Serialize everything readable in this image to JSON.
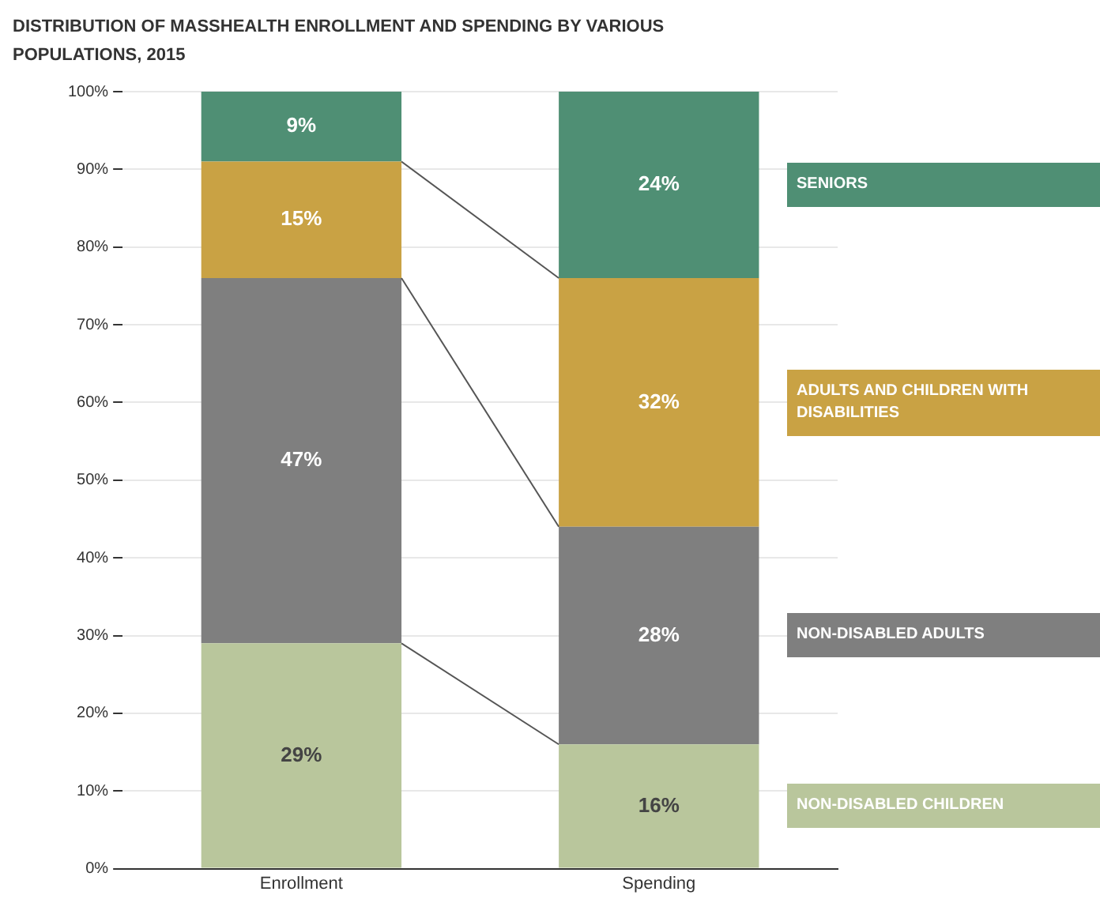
{
  "chart_data": {
    "type": "bar",
    "title": "DISTRIBUTION OF MASSHEALTH ENROLLMENT AND SPENDING BY VARIOUS POPULATIONS, 2015",
    "categories": [
      "Enrollment",
      "Spending"
    ],
    "stacked": true,
    "legend": "right",
    "grid": "y",
    "ylim": [
      0,
      100
    ],
    "yticks": [
      {
        "value": 0,
        "label": "0%"
      },
      {
        "value": 10,
        "label": "10%"
      },
      {
        "value": 20,
        "label": "20%"
      },
      {
        "value": 30,
        "label": "30%"
      },
      {
        "value": 40,
        "label": "40%"
      },
      {
        "value": 50,
        "label": "50%"
      },
      {
        "value": 60,
        "label": "60%"
      },
      {
        "value": 70,
        "label": "70%"
      },
      {
        "value": 80,
        "label": "80%"
      },
      {
        "value": 90,
        "label": "90%"
      },
      {
        "value": 100,
        "label": "100%"
      }
    ],
    "series": [
      {
        "name": "NON-DISABLED CHILDREN",
        "color": "#b9c69c",
        "values": [
          29,
          16
        ],
        "value_labels": [
          "29%",
          "16%"
        ]
      },
      {
        "name": "NON-DISABLED ADULTS",
        "color": "#7f7f7f",
        "values": [
          47,
          28
        ],
        "value_labels": [
          "47%",
          "28%"
        ]
      },
      {
        "name": "ADULTS AND CHILDREN WITH DISABILITIES",
        "color": "#c9a244",
        "values": [
          15,
          32
        ],
        "value_labels": [
          "15%",
          "32%"
        ]
      },
      {
        "name": "SENIORS",
        "color": "#4f8f74",
        "values": [
          9,
          24
        ],
        "value_labels": [
          "9%",
          "24%"
        ]
      }
    ]
  }
}
